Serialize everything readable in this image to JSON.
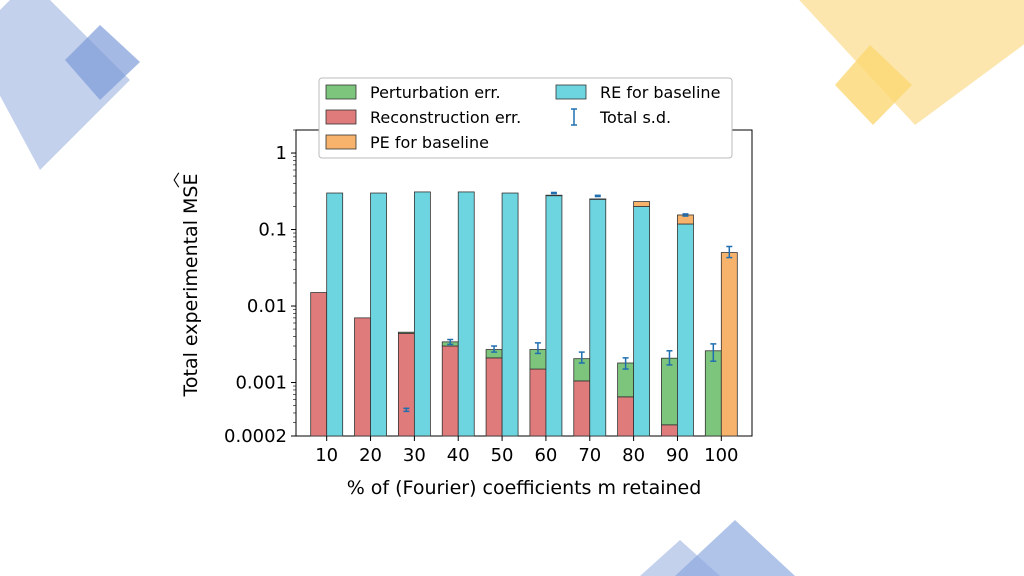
{
  "chart_data": {
    "type": "bar",
    "scale": "log",
    "xlabel": "% of (Fourier) coefficients m retained",
    "ylabel": "Total experimental MSE",
    "ylim": [
      0.0002,
      2
    ],
    "ytick_labels": [
      "1",
      "0.1",
      "0.01",
      "0.001",
      "0.0002"
    ],
    "yticks": [
      1,
      0.1,
      0.01,
      0.001,
      0.0002
    ],
    "categories": [
      "10",
      "20",
      "30",
      "40",
      "50",
      "60",
      "70",
      "80",
      "90",
      "100"
    ],
    "series": [
      {
        "name": "Reconstruction err.",
        "color": "#e07b7b",
        "values": [
          0.015,
          0.007,
          0.0044,
          0.003,
          0.0021,
          0.0015,
          0.00105,
          0.00065,
          0.00028,
          null
        ]
      },
      {
        "name": "Perturbation err.",
        "color": "#7dc47d",
        "values": [
          null,
          null,
          0.00015,
          0.0004,
          0.0006,
          0.0012,
          0.001,
          0.00115,
          0.0018,
          0.0024
        ]
      },
      {
        "name": "RE for baseline",
        "color": "#6dd5e0",
        "values": [
          0.3,
          0.3,
          0.31,
          0.31,
          0.3,
          0.28,
          0.25,
          0.2,
          0.118,
          null
        ]
      },
      {
        "name": "PE for baseline",
        "color": "#f7b26b",
        "values": [
          null,
          null,
          null,
          null,
          null,
          0.01,
          0.02,
          0.032,
          0.037,
          0.05
        ]
      }
    ],
    "errorbars": {
      "name": "Total s.d.",
      "color": "#1f6fb0",
      "left_bars": [
        null,
        null,
        [
          0.00042,
          0.00046
        ],
        [
          0.00315,
          0.00365
        ],
        [
          0.0025,
          0.003
        ],
        [
          0.0024,
          0.0033
        ],
        [
          0.0018,
          0.0025
        ],
        [
          0.0015,
          0.0021
        ],
        [
          0.0017,
          0.0026
        ],
        [
          0.0019,
          0.0032
        ]
      ],
      "right_bars": [
        null,
        null,
        null,
        null,
        null,
        [
          0.295,
          0.305
        ],
        [
          0.27,
          0.28
        ],
        null,
        [
          0.15,
          0.16
        ],
        [
          0.043,
          0.06
        ]
      ]
    },
    "legend_position": "upper",
    "legend_columns": [
      [
        "Perturbation err.",
        "Reconstruction err.",
        "PE for baseline"
      ],
      [
        "RE for baseline",
        "Total s.d."
      ]
    ]
  }
}
